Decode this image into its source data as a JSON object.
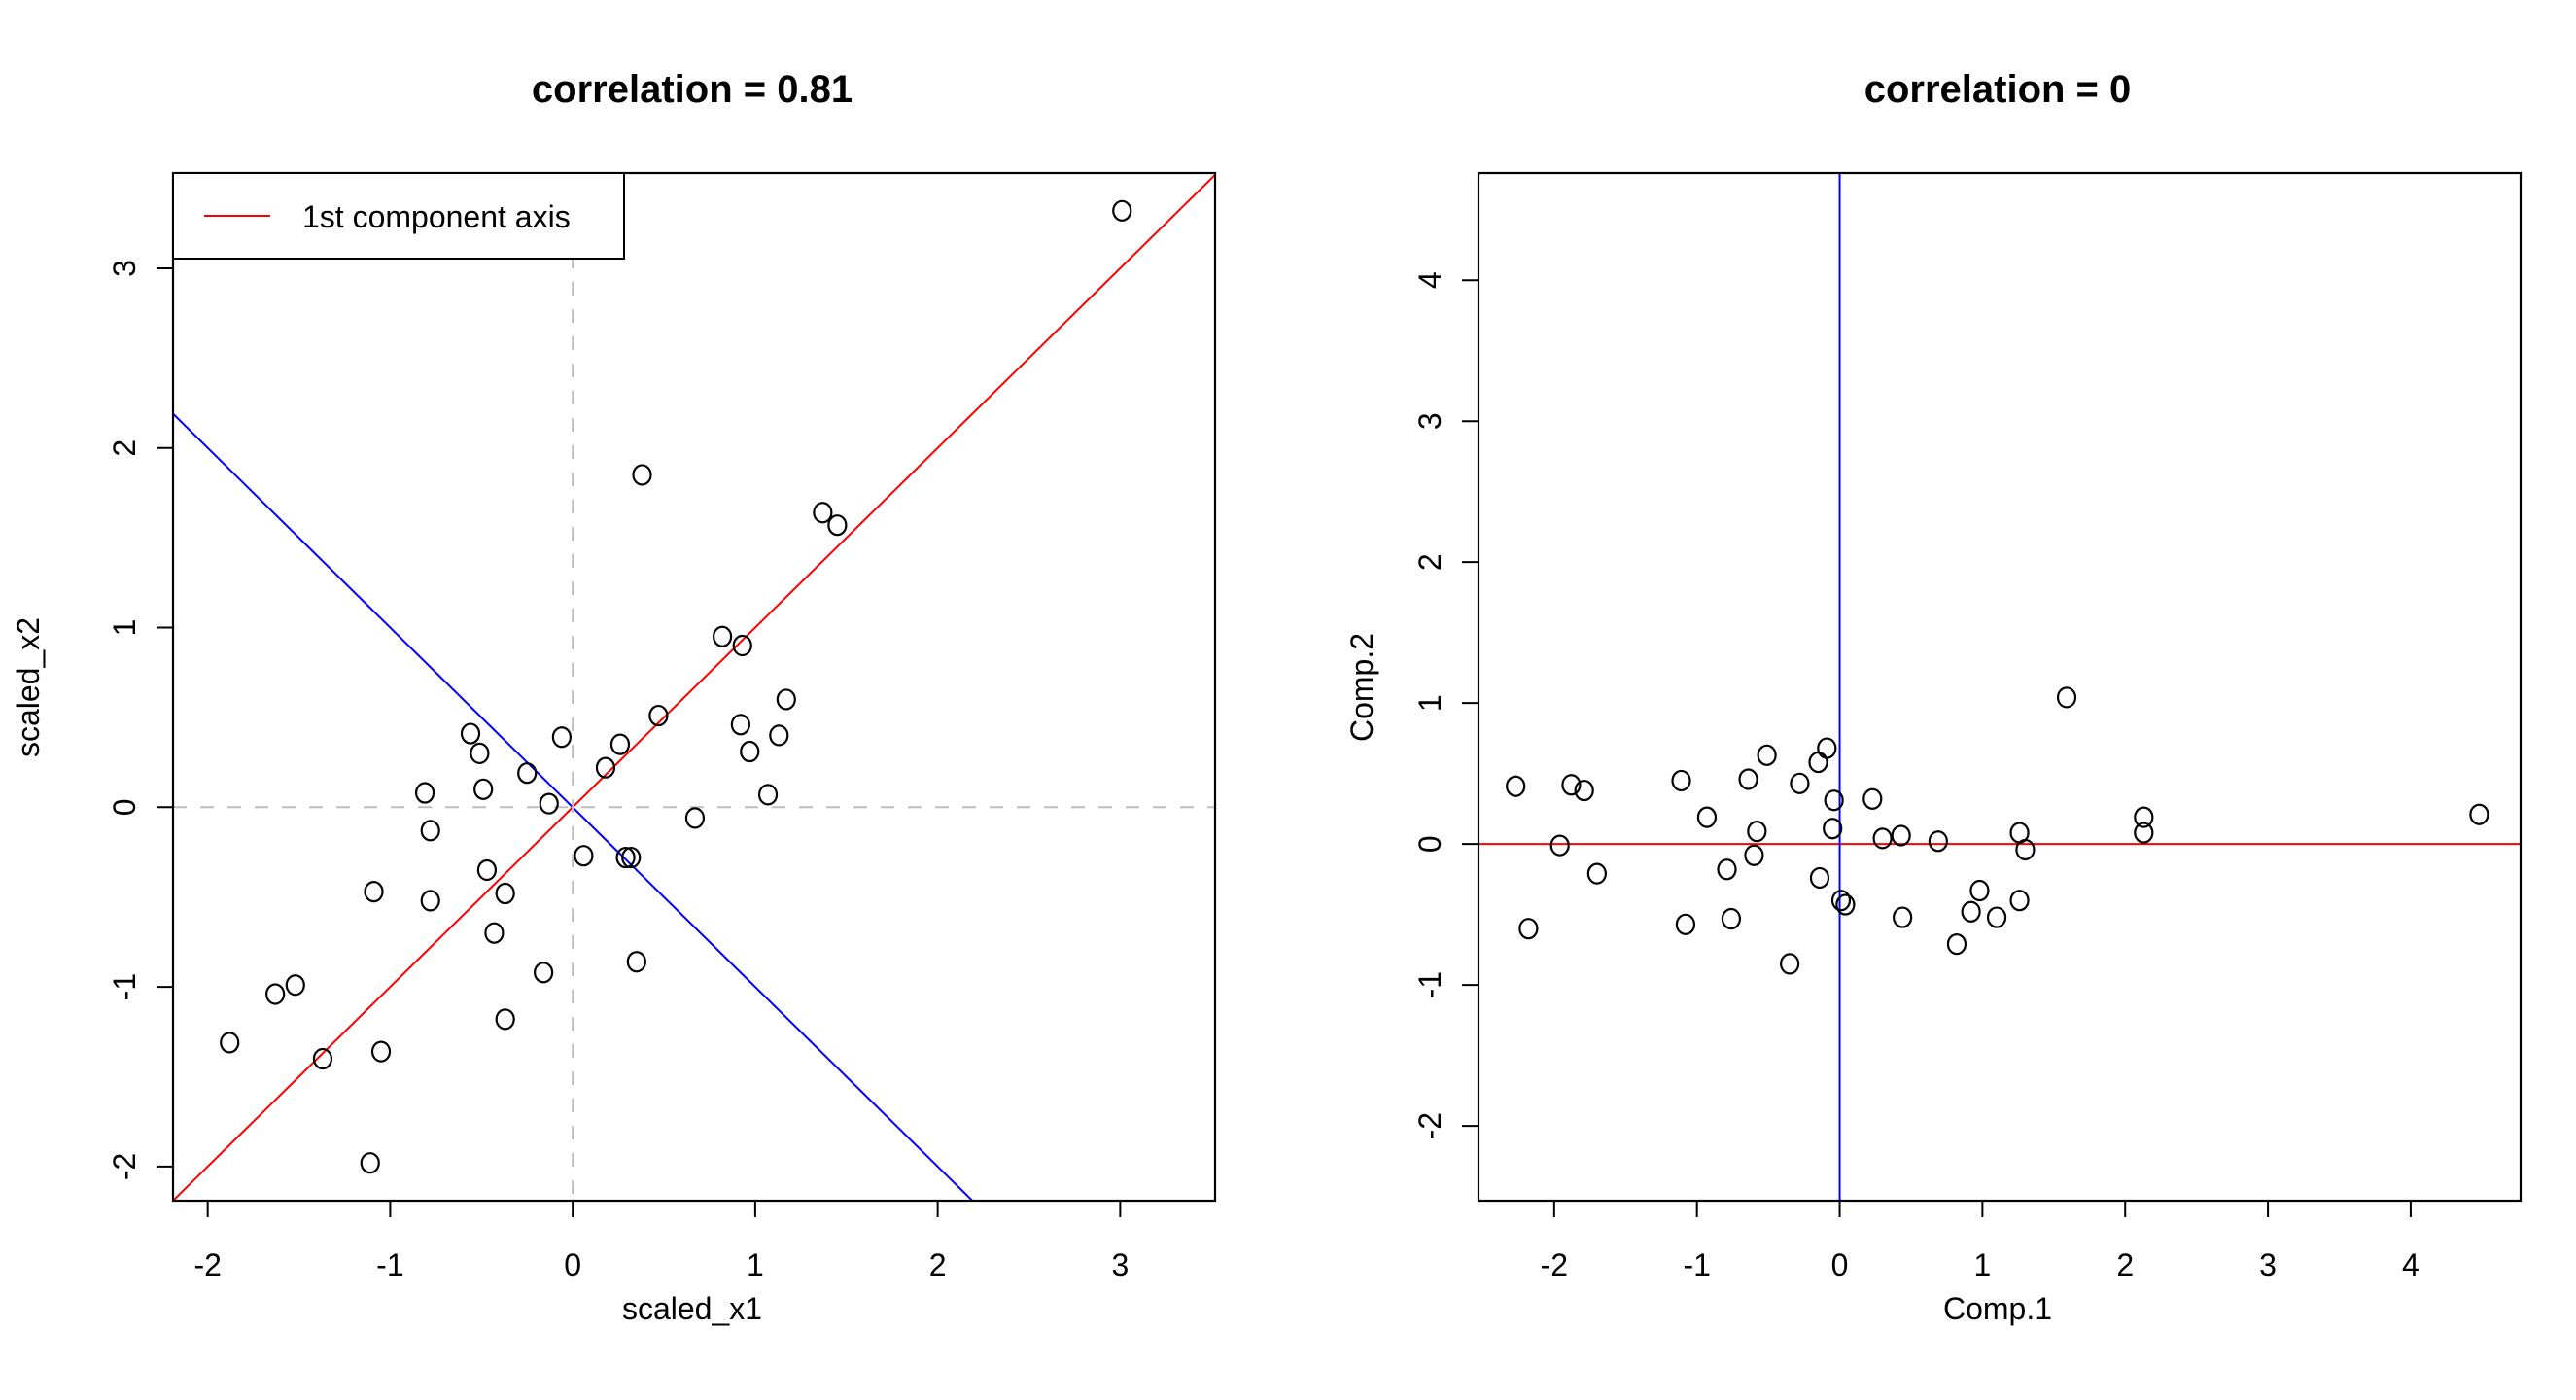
{
  "chart_data": [
    {
      "type": "scatter",
      "title": "correlation =  0.81",
      "xlabel": "scaled_x1",
      "ylabel": "scaled_x2",
      "xlim": [
        -2.19,
        3.52
      ],
      "ylim": [
        -2.19,
        3.53
      ],
      "xticks": [
        -2,
        -1,
        0,
        1,
        2,
        3
      ],
      "yticks": [
        -2,
        -1,
        0,
        1,
        2,
        3
      ],
      "grid": false,
      "legend": {
        "position": "top-left",
        "entries": [
          {
            "label": "1st component axis",
            "color": "#ff0000"
          }
        ]
      },
      "reference_lines": [
        {
          "name": "first-component-axis",
          "slope": 1,
          "intercept": 0,
          "color": "#ff0000",
          "style": "solid"
        },
        {
          "name": "second-component-axis",
          "slope": -1,
          "intercept": 0,
          "color": "#0000ff",
          "style": "solid"
        },
        {
          "name": "zero-vertical",
          "orientation": "vertical",
          "value": 0,
          "color": "#bebebe",
          "style": "dashed"
        },
        {
          "name": "zero-horizontal",
          "orientation": "horizontal",
          "value": 0,
          "color": "#bebebe",
          "style": "dashed"
        }
      ],
      "points": [
        [
          3.01,
          3.32
        ],
        [
          0.38,
          1.85
        ],
        [
          1.37,
          1.64
        ],
        [
          1.45,
          1.57
        ],
        [
          0.82,
          0.95
        ],
        [
          0.93,
          0.9
        ],
        [
          1.17,
          0.6
        ],
        [
          0.92,
          0.46
        ],
        [
          1.13,
          0.4
        ],
        [
          0.97,
          0.31
        ],
        [
          1.07,
          0.07
        ],
        [
          0.67,
          -0.06
        ],
        [
          0.47,
          0.51
        ],
        [
          0.18,
          0.22
        ],
        [
          0.26,
          0.35
        ],
        [
          -0.06,
          0.39
        ],
        [
          -0.25,
          0.19
        ],
        [
          -0.13,
          0.02
        ],
        [
          -0.56,
          0.41
        ],
        [
          -0.51,
          0.3
        ],
        [
          -0.49,
          0.1
        ],
        [
          -0.81,
          0.08
        ],
        [
          -0.78,
          -0.13
        ],
        [
          0.06,
          -0.27
        ],
        [
          0.29,
          -0.28
        ],
        [
          0.32,
          -0.28
        ],
        [
          -0.47,
          -0.35
        ],
        [
          -0.37,
          -0.48
        ],
        [
          -1.09,
          -0.47
        ],
        [
          -0.78,
          -0.52
        ],
        [
          -0.43,
          -0.7
        ],
        [
          -0.16,
          -0.92
        ],
        [
          0.35,
          -0.86
        ],
        [
          -1.63,
          -1.04
        ],
        [
          -1.52,
          -0.99
        ],
        [
          -1.88,
          -1.31
        ],
        [
          -1.37,
          -1.4
        ],
        [
          -1.05,
          -1.36
        ],
        [
          -0.37,
          -1.18
        ],
        [
          -1.11,
          -1.98
        ]
      ]
    },
    {
      "type": "scatter",
      "title": "correlation =  0",
      "xlabel": "Comp.1",
      "ylabel": "Comp.2",
      "xlim": [
        -2.53,
        4.77
      ],
      "ylim": [
        -2.53,
        4.76
      ],
      "xticks": [
        -2,
        -1,
        0,
        1,
        2,
        3,
        4
      ],
      "yticks": [
        -2,
        -1,
        0,
        1,
        2,
        3,
        4
      ],
      "grid": false,
      "reference_lines": [
        {
          "name": "comp1-axis",
          "orientation": "horizontal",
          "value": 0,
          "color": "#ff0000",
          "style": "solid"
        },
        {
          "name": "comp2-axis",
          "orientation": "vertical",
          "value": 0,
          "color": "#0000ff",
          "style": "solid"
        }
      ],
      "points": [
        [
          1.59,
          1.04
        ],
        [
          4.48,
          0.21
        ],
        [
          2.13,
          0.19
        ],
        [
          2.13,
          0.08
        ],
        [
          1.26,
          0.08
        ],
        [
          1.3,
          -0.04
        ],
        [
          0.69,
          0.02
        ],
        [
          0.43,
          0.06
        ],
        [
          0.3,
          0.04
        ],
        [
          -0.05,
          0.11
        ],
        [
          -0.09,
          0.68
        ],
        [
          -0.04,
          0.31
        ],
        [
          0.23,
          0.32
        ],
        [
          -0.15,
          0.58
        ],
        [
          -0.28,
          0.43
        ],
        [
          -0.51,
          0.63
        ],
        [
          -0.64,
          0.46
        ],
        [
          -0.58,
          0.09
        ],
        [
          -0.6,
          -0.08
        ],
        [
          -0.93,
          0.19
        ],
        [
          -1.11,
          0.45
        ],
        [
          -1.88,
          0.42
        ],
        [
          -1.79,
          0.38
        ],
        [
          -2.27,
          0.41
        ],
        [
          -1.96,
          -0.01
        ],
        [
          -1.7,
          -0.21
        ],
        [
          -0.79,
          -0.18
        ],
        [
          -0.14,
          -0.24
        ],
        [
          0.01,
          -0.4
        ],
        [
          0.04,
          -0.43
        ],
        [
          0.44,
          -0.52
        ],
        [
          0.98,
          -0.33
        ],
        [
          0.92,
          -0.48
        ],
        [
          1.1,
          -0.52
        ],
        [
          1.26,
          -0.4
        ],
        [
          0.82,
          -0.71
        ],
        [
          -1.08,
          -0.57
        ],
        [
          -0.76,
          -0.53
        ],
        [
          -0.35,
          -0.85
        ],
        [
          -2.18,
          -0.6
        ]
      ]
    }
  ]
}
